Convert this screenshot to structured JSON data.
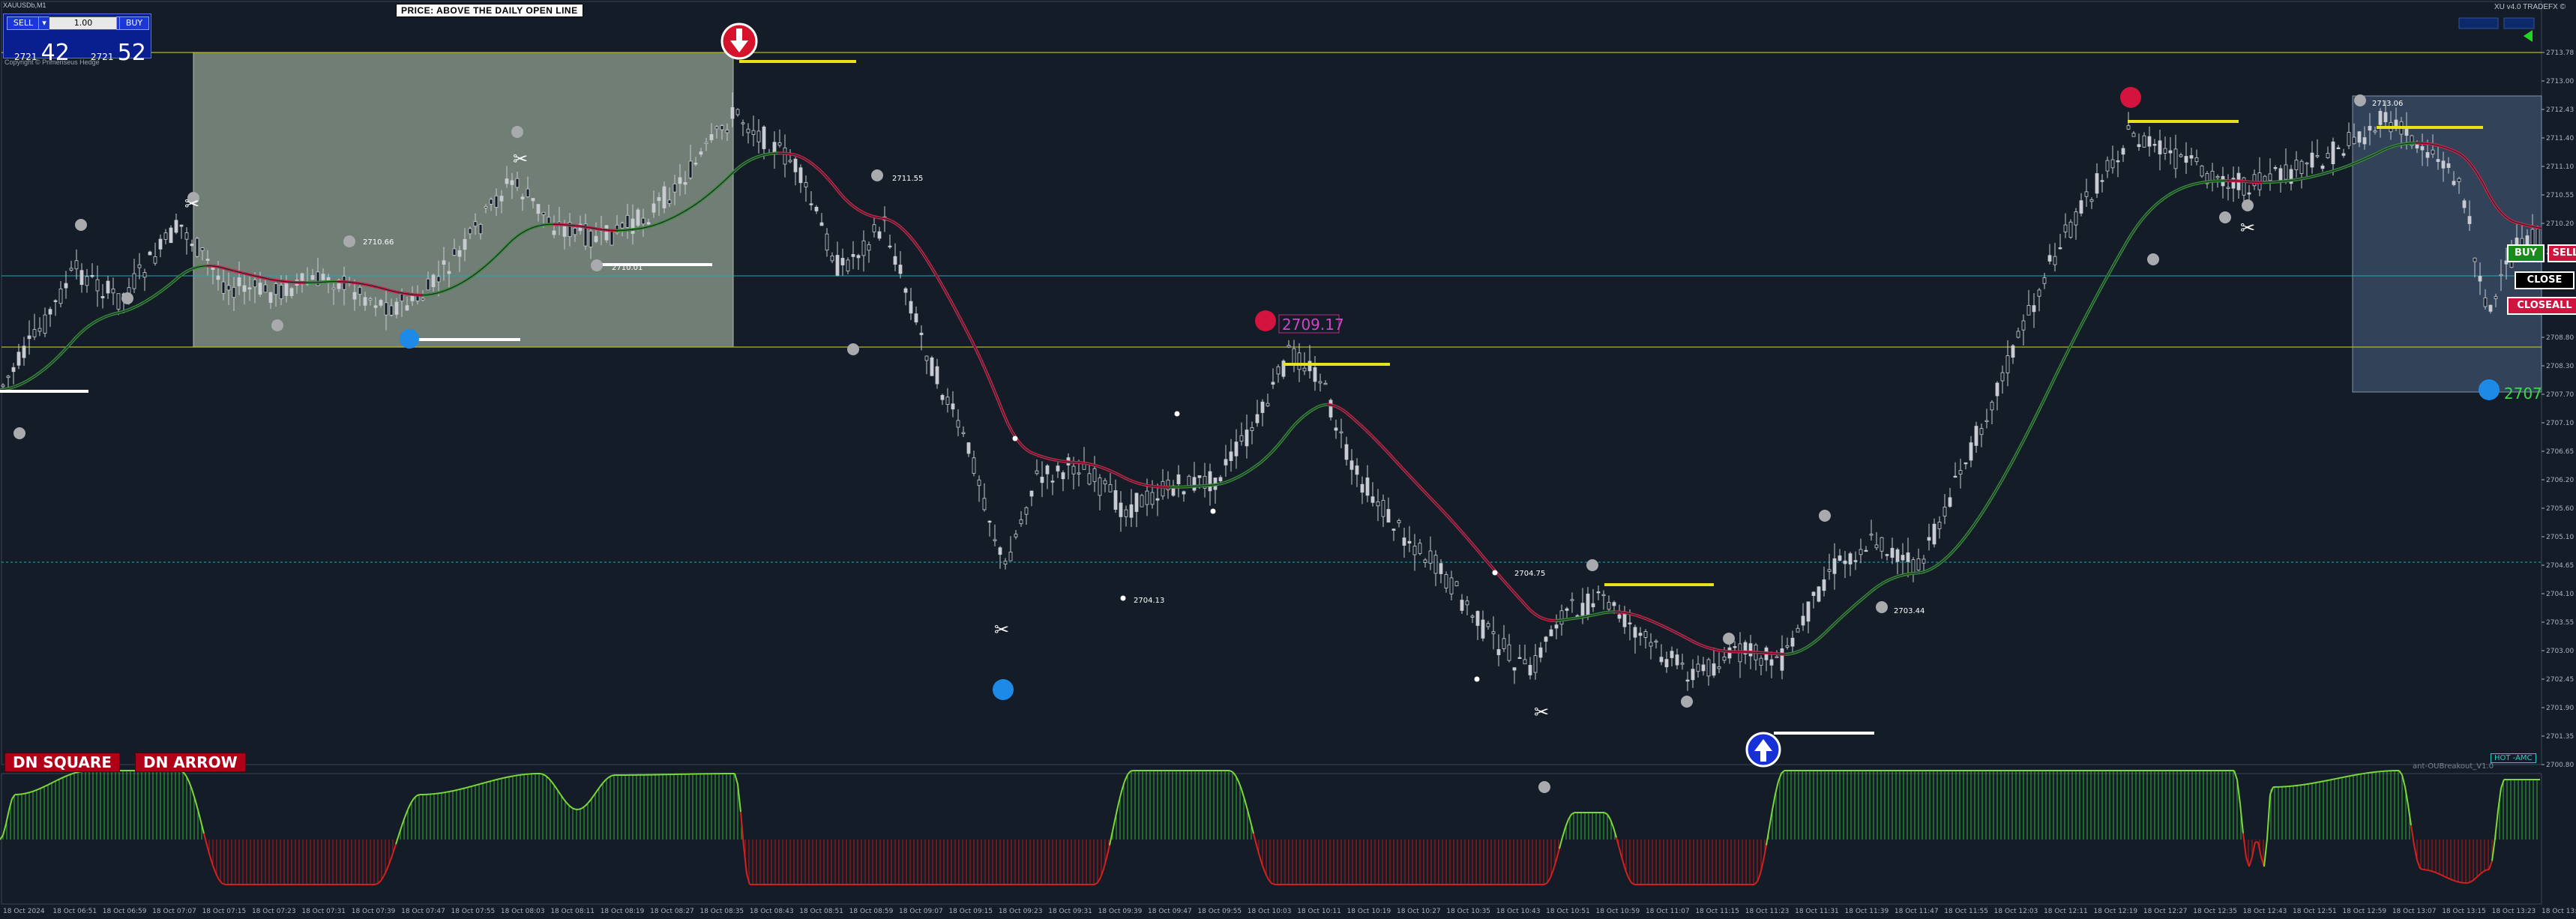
{
  "window": {
    "title": "XAUUSDb,M1"
  },
  "one_click": {
    "sell_label": "SELL",
    "buy_label": "BUY",
    "qty_value": "1.00",
    "sell_price_small": "2721",
    "sell_price_big": "42",
    "buy_price_small": "2721",
    "buy_price_big": "52"
  },
  "copyright": "Copyright © Primeriseus Hedge",
  "headline": "PRICE: ABOVE THE DAILY OPEN LINE",
  "broker": "XU v4.0 TRADEFX ©",
  "buttons": {
    "dn_square": "DN SQUARE",
    "dn_arrow": "DN ARROW",
    "buy": "BUY",
    "sell": "SELL",
    "close": "CLOSE",
    "closeall": "CLOSEALL",
    "hot": "HOT -AMC"
  },
  "indicator_label": "ant-OUBreakout_V1.0",
  "price_tags": {
    "main_red": "2709.17",
    "main_blue": "2707",
    "tag1": "2711.55",
    "tag2": "2710.66",
    "tag3": "2710.01",
    "tag4": "2704.13",
    "tag5": "2704.75",
    "tag6": "2703.44",
    "tag7": "2713.06"
  },
  "y_axis": [
    "2713.78",
    "2713.00",
    "2712.43",
    "2711.40",
    "2711.10",
    "2710.55",
    "2710.20",
    "2709.85",
    "2709.45",
    "2709.10",
    "2708.80",
    "2708.30",
    "2707.70",
    "2707.10",
    "2706.65",
    "2706.20",
    "2705.60",
    "2705.10",
    "2704.65",
    "2704.10",
    "2703.55",
    "2703.00",
    "2702.45",
    "2701.90",
    "2701.35",
    "2700.80"
  ],
  "x_axis": [
    "18 Oct 2024",
    "18 Oct 06:51",
    "18 Oct 06:59",
    "18 Oct 07:07",
    "18 Oct 07:15",
    "18 Oct 07:23",
    "18 Oct 07:31",
    "18 Oct 07:39",
    "18 Oct 07:47",
    "18 Oct 07:55",
    "18 Oct 08:03",
    "18 Oct 08:11",
    "18 Oct 08:19",
    "18 Oct 08:27",
    "18 Oct 08:35",
    "18 Oct 08:43",
    "18 Oct 08:51",
    "18 Oct 08:59",
    "18 Oct 09:07",
    "18 Oct 09:15",
    "18 Oct 09:23",
    "18 Oct 09:31",
    "18 Oct 09:39",
    "18 Oct 09:47",
    "18 Oct 09:55",
    "18 Oct 10:03",
    "18 Oct 10:11",
    "18 Oct 10:19",
    "18 Oct 10:27",
    "18 Oct 10:35",
    "18 Oct 10:43",
    "18 Oct 10:51",
    "18 Oct 10:59",
    "18 Oct 11:07",
    "18 Oct 11:15",
    "18 Oct 11:23",
    "18 Oct 11:31",
    "18 Oct 11:39",
    "18 Oct 11:47",
    "18 Oct 11:55",
    "18 Oct 12:03",
    "18 Oct 12:11",
    "18 Oct 12:19",
    "18 Oct 12:27",
    "18 Oct 12:35",
    "18 Oct 12:43",
    "18 Oct 12:51",
    "18 Oct 12:59",
    "18 Oct 13:07",
    "18 Oct 13:15",
    "18 Oct 13:23",
    "18 Oct 13:31"
  ],
  "colors": {
    "background": "#131c27",
    "ma_up": "#2e6e2e",
    "ma_down": "#b01e3a",
    "candle": "#c8ccd2",
    "osc_up": "#3cb83c",
    "osc_down": "#c21a1a",
    "level_yellow": "#e8e21c"
  }
}
